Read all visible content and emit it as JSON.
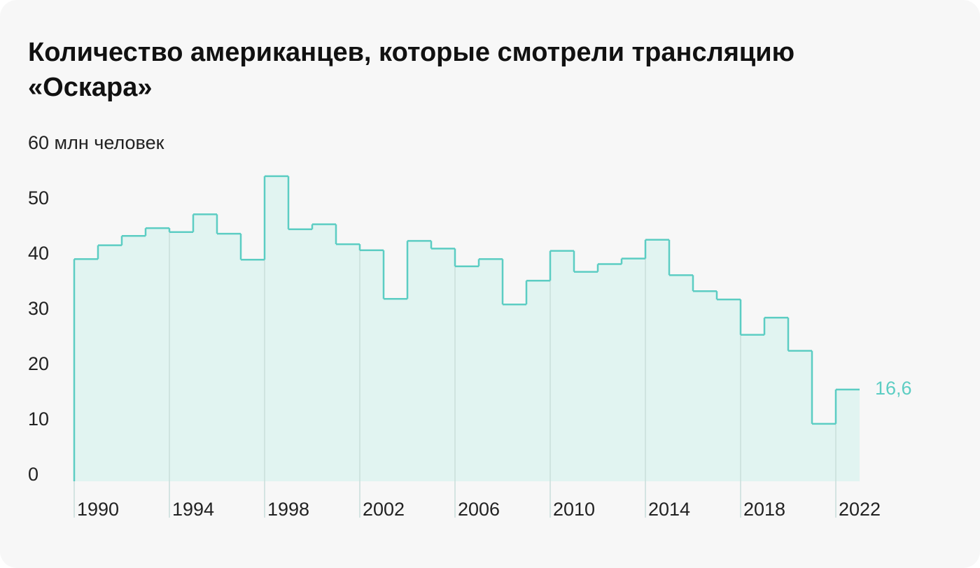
{
  "chart_data": {
    "type": "step",
    "title": "Количество американцев, которые смотрели трансляцию «Оскара»",
    "x": [
      1990,
      1991,
      1992,
      1993,
      1994,
      1995,
      1996,
      1997,
      1998,
      1999,
      2000,
      2001,
      2002,
      2003,
      2004,
      2005,
      2006,
      2007,
      2008,
      2009,
      2010,
      2011,
      2012,
      2013,
      2014,
      2015,
      2016,
      2017,
      2018,
      2019,
      2020,
      2021,
      2022
    ],
    "values": [
      40.2,
      42.7,
      44.4,
      45.8,
      45.1,
      48.3,
      44.8,
      40.1,
      55.2,
      45.6,
      46.5,
      42.9,
      41.8,
      33.0,
      43.5,
      42.1,
      38.9,
      40.2,
      32.0,
      36.3,
      41.7,
      37.9,
      39.3,
      40.3,
      43.7,
      37.3,
      34.4,
      32.9,
      26.5,
      29.6,
      23.6,
      10.4,
      16.6
    ],
    "value_labels": [
      null,
      null,
      null,
      null,
      null,
      null,
      null,
      null,
      null,
      null,
      null,
      null,
      null,
      null,
      null,
      null,
      null,
      null,
      null,
      null,
      null,
      null,
      null,
      null,
      null,
      null,
      null,
      null,
      null,
      null,
      null,
      null,
      "16,6"
    ],
    "color": "#5ccdc3",
    "fill": "#e1f4f1",
    "xlim": [
      1990,
      2023
    ],
    "xticks": [
      1990,
      1994,
      1998,
      2002,
      2006,
      2010,
      2014,
      2018,
      2022
    ],
    "ylim": [
      0,
      60
    ],
    "yticks": [
      0,
      10,
      20,
      30,
      40,
      50,
      {
        "value": 60,
        "label": "60 млн человек"
      }
    ]
  }
}
